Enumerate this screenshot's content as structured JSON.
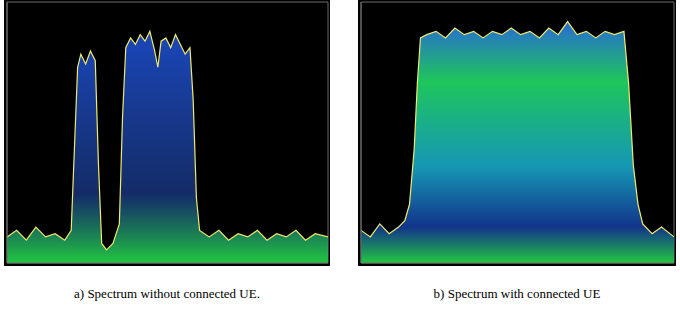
{
  "chart_data": [
    {
      "type": "line",
      "title": "a) Spectrum without connected UE.",
      "x": [
        0,
        0.3,
        0.6,
        0.9,
        1.2,
        1.5,
        1.8,
        2.0,
        2.1,
        2.2,
        2.3,
        2.45,
        2.6,
        2.75,
        2.85,
        2.95,
        3.1,
        3.3,
        3.5,
        3.6,
        3.7,
        3.85,
        4.0,
        4.15,
        4.3,
        4.45,
        4.6,
        4.7,
        4.8,
        4.95,
        5.1,
        5.25,
        5.4,
        5.55,
        5.7,
        5.8,
        5.9,
        6.0,
        6.3,
        6.6,
        6.9,
        7.2,
        7.5,
        7.8,
        8.1,
        8.4,
        8.7,
        9.0,
        9.3,
        9.6,
        10
      ],
      "values": [
        0.8,
        1.0,
        0.7,
        1.1,
        0.8,
        0.9,
        0.7,
        1.0,
        3.5,
        6.0,
        6.4,
        6.1,
        6.5,
        6.2,
        3.0,
        0.6,
        0.4,
        0.6,
        1.2,
        4.5,
        6.6,
        6.9,
        6.7,
        7.0,
        6.8,
        7.1,
        6.5,
        6.0,
        6.8,
        6.9,
        6.6,
        7.0,
        6.7,
        6.4,
        6.6,
        5.0,
        2.0,
        1.0,
        0.8,
        1.0,
        0.7,
        0.9,
        0.8,
        1.0,
        0.7,
        0.9,
        0.8,
        1.0,
        0.7,
        0.9,
        0.8
      ],
      "color": "#f2ea6a",
      "xlim": [
        0,
        10
      ],
      "ylim": [
        0,
        8
      ],
      "xticks": [
        0,
        2,
        4,
        6,
        8,
        10
      ],
      "yticks": [
        0,
        2,
        4,
        6,
        8
      ],
      "grid": true,
      "tick_labels": false
    },
    {
      "type": "line",
      "title": "b) Spectrum with connected UE",
      "x": [
        0,
        0.3,
        0.6,
        0.9,
        1.2,
        1.4,
        1.55,
        1.7,
        1.8,
        1.9,
        2.1,
        2.4,
        2.7,
        3.0,
        3.3,
        3.6,
        3.9,
        4.2,
        4.5,
        4.8,
        5.1,
        5.4,
        5.7,
        6.0,
        6.3,
        6.6,
        6.9,
        7.2,
        7.5,
        7.8,
        8.1,
        8.4,
        8.55,
        8.7,
        8.85,
        9.0,
        9.3,
        9.6,
        10
      ],
      "values": [
        1.0,
        0.8,
        1.2,
        0.9,
        1.1,
        1.3,
        1.8,
        3.5,
        5.5,
        6.9,
        7.0,
        7.1,
        6.9,
        7.2,
        7.0,
        7.1,
        6.9,
        7.1,
        7.0,
        7.2,
        7.0,
        7.1,
        6.9,
        7.2,
        7.0,
        7.4,
        7.0,
        7.1,
        6.9,
        7.1,
        7.0,
        7.1,
        5.5,
        3.0,
        1.8,
        1.2,
        0.9,
        1.1,
        0.8
      ],
      "color": "#f2ea6a",
      "xlim": [
        0,
        10
      ],
      "ylim": [
        0,
        8
      ],
      "xticks": [
        0,
        2,
        4,
        6,
        8,
        10
      ],
      "yticks": [
        0,
        2,
        4,
        6,
        8
      ],
      "grid": true,
      "tick_labels": false
    }
  ]
}
